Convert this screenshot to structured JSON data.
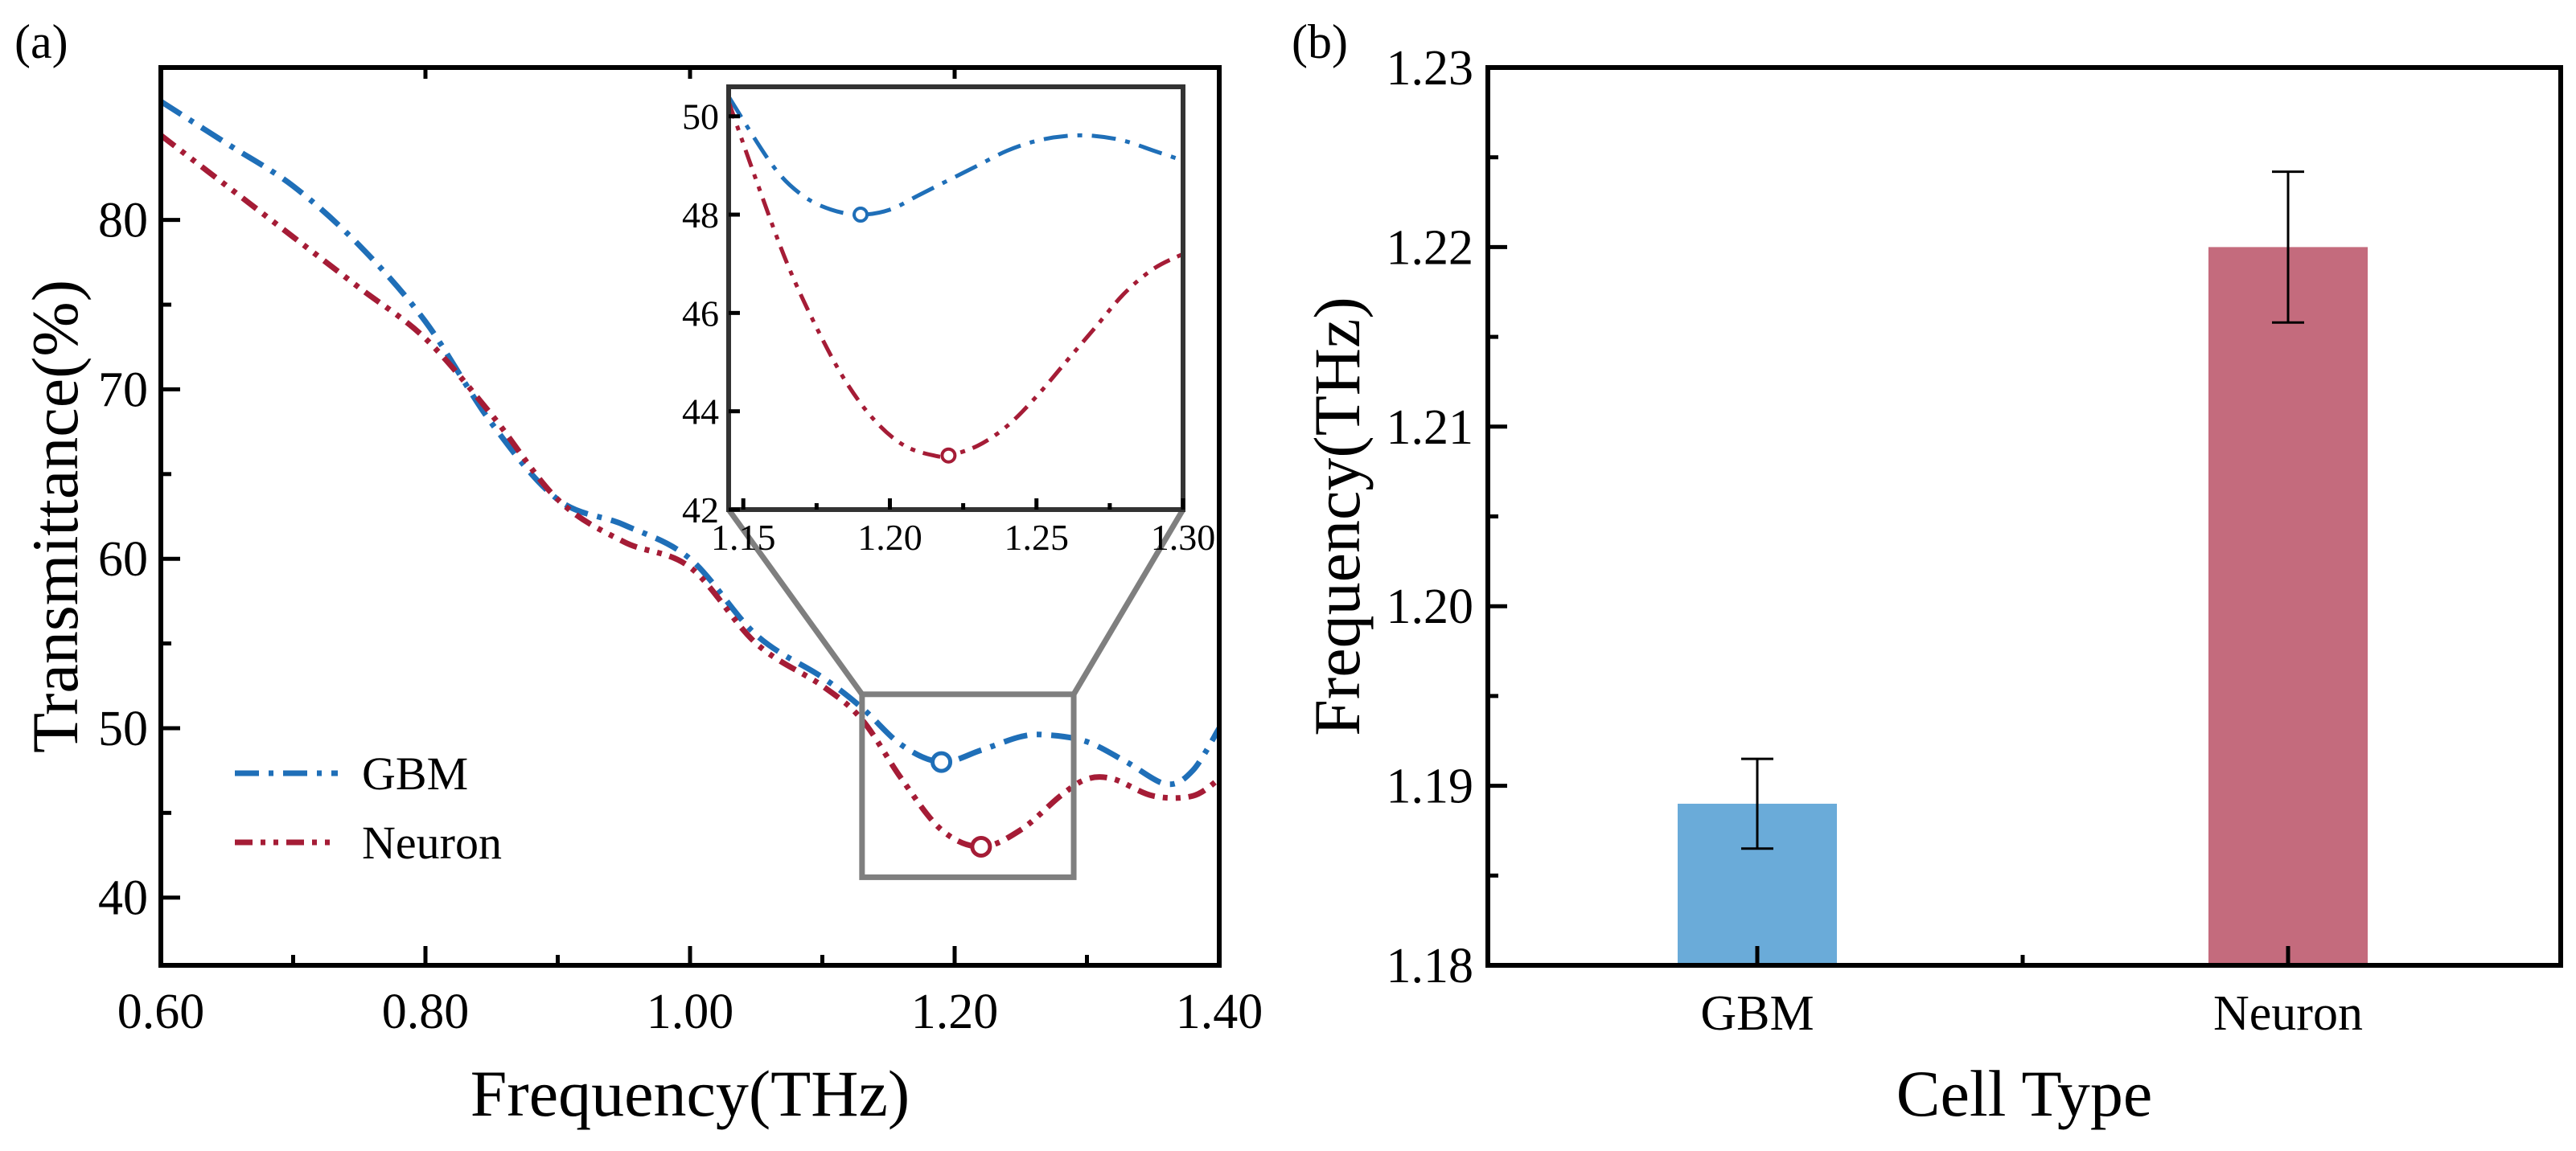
{
  "figure": {
    "panel_a_label": "(a)",
    "panel_b_label": "(b)"
  },
  "chart_data": [
    {
      "type": "line",
      "panel": "(a)",
      "xlabel": "Frequency(THz)",
      "ylabel": "Transmittance(%)",
      "xlim": [
        0.6,
        1.4
      ],
      "ylim": [
        36,
        89
      ],
      "x_ticks": [
        "0.60",
        "0.80",
        "1.00",
        "1.20",
        "1.40"
      ],
      "y_ticks": [
        "40",
        "50",
        "60",
        "70",
        "80"
      ],
      "legend_position": "lower-left",
      "series": [
        {
          "name": "GBM",
          "color": "#1f6fb8",
          "dash": "dash-dot",
          "x": [
            0.6,
            0.65,
            0.7,
            0.75,
            0.8,
            0.85,
            0.9,
            0.95,
            1.0,
            1.05,
            1.1,
            1.13,
            1.16,
            1.19,
            1.22,
            1.25,
            1.27,
            1.3,
            1.33,
            1.36,
            1.38,
            1.4
          ],
          "y": [
            87.0,
            84.5,
            82.0,
            78.5,
            74.0,
            68.0,
            63.5,
            62.0,
            60.0,
            55.5,
            53.0,
            51.2,
            49.0,
            48.0,
            48.7,
            49.5,
            49.6,
            49.2,
            48.0,
            46.7,
            47.5,
            50.0
          ],
          "marked_minimum": {
            "x": 1.19,
            "y": 48.0
          }
        },
        {
          "name": "Neuron",
          "color": "#a51c36",
          "dash": "dash-dot-dot",
          "x": [
            0.6,
            0.65,
            0.7,
            0.75,
            0.8,
            0.85,
            0.9,
            0.95,
            1.0,
            1.05,
            1.1,
            1.13,
            1.16,
            1.19,
            1.22,
            1.25,
            1.28,
            1.3,
            1.32,
            1.35,
            1.38,
            1.4
          ],
          "y": [
            85.0,
            82.0,
            79.0,
            76.0,
            73.0,
            68.5,
            63.5,
            61.0,
            59.5,
            55.0,
            52.5,
            50.5,
            47.0,
            44.0,
            43.0,
            44.0,
            46.0,
            47.0,
            47.0,
            46.0,
            46.0,
            47.0
          ],
          "marked_minimum": {
            "x": 1.22,
            "y": 43.0
          }
        }
      ],
      "zoom_box": {
        "xlim": [
          1.13,
          1.29
        ],
        "ylim": [
          41.2,
          52.0
        ]
      },
      "inset": {
        "xlim": [
          1.145,
          1.3
        ],
        "ylim": [
          42,
          50.6
        ],
        "x_ticks": [
          "1.15",
          "1.20",
          "1.25",
          "1.30"
        ],
        "y_ticks": [
          "42",
          "44",
          "46",
          "48",
          "50"
        ],
        "series": [
          {
            "name": "GBM",
            "x": [
              1.145,
              1.16,
              1.17,
              1.18,
              1.19,
              1.2,
              1.21,
              1.22,
              1.23,
              1.24,
              1.25,
              1.26,
              1.27,
              1.28,
              1.29,
              1.3
            ],
            "y": [
              50.4,
              49.0,
              48.4,
              48.1,
              48.0,
              48.1,
              48.4,
              48.7,
              49.0,
              49.3,
              49.5,
              49.6,
              49.6,
              49.5,
              49.3,
              49.1
            ],
            "marked_minimum": {
              "x": 1.19,
              "y": 48.0
            }
          },
          {
            "name": "Neuron",
            "x": [
              1.145,
              1.155,
              1.165,
              1.175,
              1.185,
              1.195,
              1.205,
              1.215,
              1.22,
              1.23,
              1.24,
              1.25,
              1.26,
              1.27,
              1.28,
              1.29,
              1.3
            ],
            "y": [
              50.3,
              48.6,
              47.0,
              45.7,
              44.6,
              43.8,
              43.3,
              43.1,
              43.1,
              43.3,
              43.7,
              44.3,
              45.0,
              45.7,
              46.4,
              46.9,
              47.2
            ],
            "marked_minimum": {
              "x": 1.22,
              "y": 43.1
            }
          }
        ]
      }
    },
    {
      "type": "bar",
      "panel": "(b)",
      "xlabel": "Cell Type",
      "ylabel": "Frequency(THz)",
      "categories": [
        "GBM",
        "Neuron"
      ],
      "values": [
        1.189,
        1.22
      ],
      "errors": [
        0.0025,
        0.0042
      ],
      "colors": [
        "#6aabd9",
        "#c46b7d"
      ],
      "ylim": [
        1.18,
        1.23
      ],
      "y_ticks": [
        "1.18",
        "1.19",
        "1.20",
        "1.21",
        "1.22",
        "1.23"
      ]
    }
  ]
}
